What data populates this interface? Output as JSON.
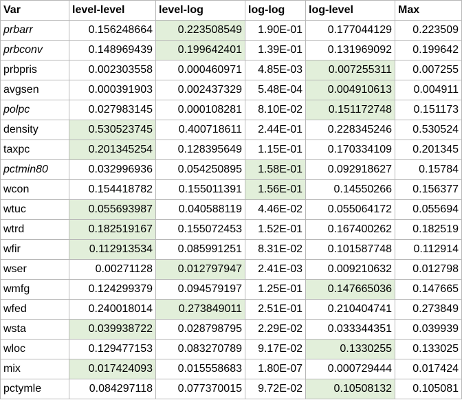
{
  "table": {
    "headers": [
      "Var",
      "level-level",
      "level-log",
      "log-log",
      "log-level",
      "Max"
    ],
    "highlight_color": "#e2efda",
    "rows": [
      {
        "var": "prbarr",
        "italic": true,
        "values": [
          "0.156248664",
          "0.223508549",
          "1.90E-01",
          "0.177044129",
          "0.223509"
        ],
        "hl": 1
      },
      {
        "var": "prbconv",
        "italic": true,
        "values": [
          "0.148969439",
          "0.199642401",
          "1.39E-01",
          "0.131969092",
          "0.199642"
        ],
        "hl": 1
      },
      {
        "var": "prbpris",
        "italic": false,
        "values": [
          "0.002303558",
          "0.000460971",
          "4.85E-03",
          "0.007255311",
          "0.007255"
        ],
        "hl": 3
      },
      {
        "var": "avgsen",
        "italic": false,
        "values": [
          "0.000391903",
          "0.002437329",
          "5.48E-04",
          "0.004910613",
          "0.004911"
        ],
        "hl": 3
      },
      {
        "var": "polpc",
        "italic": true,
        "values": [
          "0.027983145",
          "0.000108281",
          "8.10E-02",
          "0.151172748",
          "0.151173"
        ],
        "hl": 3
      },
      {
        "var": "density",
        "italic": false,
        "values": [
          "0.530523745",
          "0.400718611",
          "2.44E-01",
          "0.228345246",
          "0.530524"
        ],
        "hl": 0
      },
      {
        "var": "taxpc",
        "italic": false,
        "values": [
          "0.201345254",
          "0.128395649",
          "1.15E-01",
          "0.170334109",
          "0.201345"
        ],
        "hl": 0
      },
      {
        "var": "pctmin80",
        "italic": true,
        "values": [
          "0.032996936",
          "0.054250895",
          "1.58E-01",
          "0.092918627",
          "0.15784"
        ],
        "hl": 2
      },
      {
        "var": "wcon",
        "italic": false,
        "values": [
          "0.154418782",
          "0.155011391",
          "1.56E-01",
          "0.14550266",
          "0.156377"
        ],
        "hl": 2
      },
      {
        "var": "wtuc",
        "italic": false,
        "values": [
          "0.055693987",
          "0.040588119",
          "4.46E-02",
          "0.055064172",
          "0.055694"
        ],
        "hl": 0
      },
      {
        "var": "wtrd",
        "italic": false,
        "values": [
          "0.182519167",
          "0.155072453",
          "1.52E-01",
          "0.167400262",
          "0.182519"
        ],
        "hl": 0
      },
      {
        "var": "wfir",
        "italic": false,
        "values": [
          "0.112913534",
          "0.085991251",
          "8.31E-02",
          "0.101587748",
          "0.112914"
        ],
        "hl": 0
      },
      {
        "var": "wser",
        "italic": false,
        "values": [
          "0.00271128",
          "0.012797947",
          "2.41E-03",
          "0.009210632",
          "0.012798"
        ],
        "hl": 1
      },
      {
        "var": "wmfg",
        "italic": false,
        "values": [
          "0.124299379",
          "0.094579197",
          "1.25E-01",
          "0.147665036",
          "0.147665"
        ],
        "hl": 3
      },
      {
        "var": "wfed",
        "italic": false,
        "values": [
          "0.240018014",
          "0.273849011",
          "2.51E-01",
          "0.210404741",
          "0.273849"
        ],
        "hl": 1
      },
      {
        "var": "wsta",
        "italic": false,
        "values": [
          "0.039938722",
          "0.028798795",
          "2.29E-02",
          "0.033344351",
          "0.039939"
        ],
        "hl": 0
      },
      {
        "var": "wloc",
        "italic": false,
        "values": [
          "0.129477153",
          "0.083270789",
          "9.17E-02",
          "0.1330255",
          "0.133025"
        ],
        "hl": 3
      },
      {
        "var": "mix",
        "italic": false,
        "values": [
          "0.017424093",
          "0.015558683",
          "1.80E-07",
          "0.000729444",
          "0.017424"
        ],
        "hl": 0
      },
      {
        "var": "pctymle",
        "italic": false,
        "values": [
          "0.084297118",
          "0.077370015",
          "9.72E-02",
          "0.10508132",
          "0.105081"
        ],
        "hl": 3
      }
    ]
  }
}
